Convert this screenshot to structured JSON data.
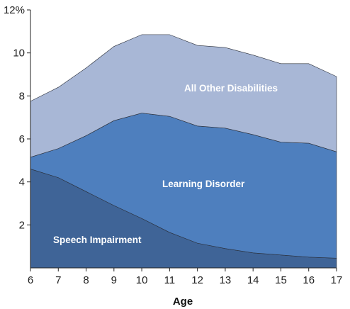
{
  "chart_data": {
    "type": "area",
    "stacked": true,
    "title": "",
    "xlabel": "Age",
    "ylabel": "",
    "x": [
      6,
      7,
      8,
      9,
      10,
      11,
      12,
      13,
      14,
      15,
      16,
      17
    ],
    "xlim": [
      6,
      17
    ],
    "ylim": [
      0,
      12
    ],
    "y_ticks": [
      2,
      4,
      6,
      8,
      10,
      12
    ],
    "y_tick_labels": [
      "2",
      "4",
      "6",
      "8",
      "10",
      "12%"
    ],
    "grid": false,
    "legend": "none; series labeled directly inside areas",
    "series": [
      {
        "name": "Speech Impairment",
        "color": "#3f6497",
        "values": [
          4.6,
          4.2,
          3.55,
          2.9,
          2.3,
          1.65,
          1.15,
          0.9,
          0.7,
          0.6,
          0.5,
          0.45
        ]
      },
      {
        "name": "Learning Disorder",
        "color": "#4e7fbe",
        "values": [
          0.55,
          1.35,
          2.6,
          3.95,
          4.9,
          5.4,
          5.45,
          5.6,
          5.5,
          5.25,
          5.3,
          4.95
        ]
      },
      {
        "name": "All Other Disabilities",
        "color": "#a8b7d6",
        "values": [
          2.6,
          2.85,
          3.15,
          3.45,
          3.65,
          3.8,
          3.75,
          3.75,
          3.7,
          3.65,
          3.7,
          3.5
        ]
      }
    ]
  }
}
